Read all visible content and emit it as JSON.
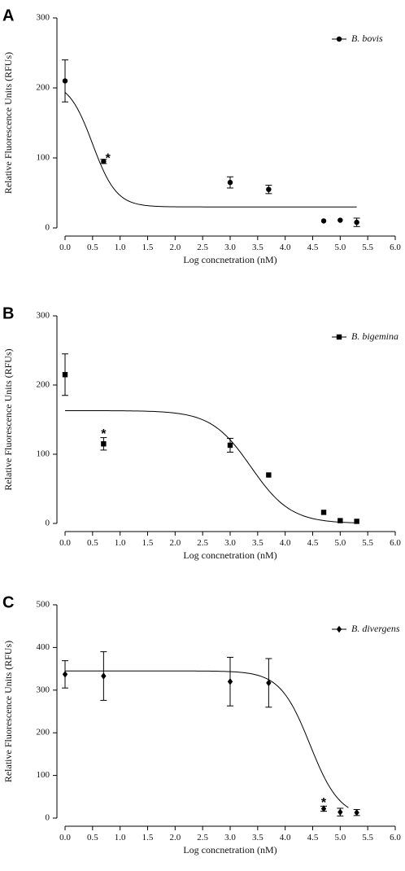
{
  "chart_data": [
    {
      "type": "scatter",
      "panel": "A",
      "xlabel": "Log concnetration (nM)",
      "ylabel": "Relative Fluorescence Units (RFUs)",
      "xlim": [
        0,
        6
      ],
      "ylim": [
        0,
        300
      ],
      "x_ticks": [
        "0.0",
        "0.5",
        "1.0",
        "1.5",
        "2.0",
        "2.5",
        "3.0",
        "3.5",
        "4.0",
        "4.5",
        "5.0",
        "5.5",
        "6.0"
      ],
      "y_ticks": [
        "0",
        "100",
        "200",
        "300"
      ],
      "legend": "top-right",
      "series": [
        {
          "name": "B. bovis",
          "marker": "circle",
          "x": [
            0.0,
            0.7,
            3.0,
            3.7,
            4.7,
            5.0,
            5.3
          ],
          "y": [
            210,
            95,
            65,
            55,
            10,
            11,
            8
          ],
          "err": [
            30,
            3,
            8,
            6,
            0,
            0,
            6
          ],
          "fit": {
            "top": 210,
            "bottom": 30,
            "ic50": 0.5,
            "hill": 2.0,
            "x_range": [
              0.0,
              5.3
            ]
          }
        }
      ],
      "annotations": [
        {
          "text": "*",
          "x": 0.78,
          "y": 103
        }
      ]
    },
    {
      "type": "scatter",
      "panel": "B",
      "xlabel": "Log concnetration (nM)",
      "ylabel": "Relative Fluorescence Units (RFUs)",
      "xlim": [
        0,
        6
      ],
      "ylim": [
        0,
        300
      ],
      "x_ticks": [
        "0.0",
        "0.5",
        "1.0",
        "1.5",
        "2.0",
        "2.5",
        "3.0",
        "3.5",
        "4.0",
        "4.5",
        "5.0",
        "5.5",
        "6.0"
      ],
      "y_ticks": [
        "0",
        "100",
        "200",
        "300"
      ],
      "legend": "top-right",
      "series": [
        {
          "name": "B. bigemina",
          "marker": "square",
          "x": [
            0.0,
            0.7,
            3.0,
            3.7,
            4.7,
            5.0,
            5.3
          ],
          "y": [
            215,
            115,
            113,
            70,
            16,
            4,
            3
          ],
          "err": [
            30,
            9,
            10,
            0,
            0,
            0,
            0
          ],
          "fit": {
            "top": 163,
            "bottom": 0,
            "ic50": 3.38,
            "hill": 1.2,
            "x_range": [
              0.0,
              5.3
            ]
          }
        }
      ],
      "annotations": [
        {
          "text": "*",
          "x": 0.7,
          "y": 133
        }
      ]
    },
    {
      "type": "scatter",
      "panel": "C",
      "xlabel": "Log  concnetration (nM)",
      "ylabel": "Relative Fluorescence Units (RFUs)",
      "xlim": [
        0,
        6
      ],
      "ylim": [
        0,
        500
      ],
      "x_ticks": [
        "0.0",
        "0.5",
        "1.0",
        "1.5",
        "2.0",
        "2.5",
        "3.0",
        "3.5",
        "4.0",
        "4.5",
        "5.0",
        "5.5",
        "6.0"
      ],
      "y_ticks": [
        "0",
        "100",
        "200",
        "300",
        "400",
        "500"
      ],
      "legend": "top-right",
      "series": [
        {
          "name": "B. divergens",
          "marker": "diamond",
          "x": [
            0.0,
            0.7,
            3.0,
            3.7,
            4.7,
            5.0,
            5.3
          ],
          "y": [
            337,
            333,
            320,
            317,
            22,
            14,
            13
          ],
          "err": [
            32,
            57,
            57,
            57,
            6,
            9,
            7
          ],
          "fit": {
            "top": 345,
            "bottom": 0,
            "ic50": 4.45,
            "hill": 1.6,
            "x_range": [
              0.0,
              5.15
            ]
          }
        }
      ],
      "annotations": [
        {
          "text": "*",
          "x": 4.7,
          "y": 42
        }
      ]
    }
  ]
}
